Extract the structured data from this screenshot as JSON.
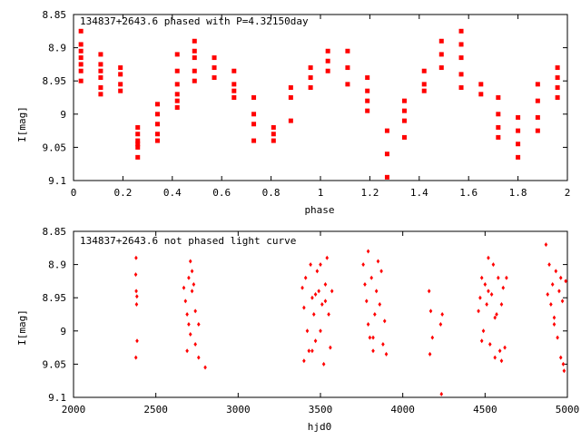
{
  "colors": {
    "marker": "#ff0000",
    "axis": "#000000",
    "background": "#ffffff"
  },
  "chart_data": [
    {
      "type": "scatter",
      "title": "134837+2643.6 phased with P=4.32150day",
      "xlabel": "phase",
      "ylabel": "I[mag]",
      "xlim": [
        0,
        2
      ],
      "ylim": [
        9.1,
        8.85
      ],
      "y_inverted": true,
      "grid": false,
      "x_ticks": [
        "0",
        "0.2",
        "0.4",
        "0.6",
        "0.8",
        "1",
        "1.2",
        "1.4",
        "1.6",
        "1.8",
        "2"
      ],
      "x_tick_values": [
        0,
        0.2,
        0.4,
        0.6,
        0.8,
        1,
        1.2,
        1.4,
        1.6,
        1.8,
        2
      ],
      "y_ticks": [
        "8.85",
        "8.9",
        "8.95",
        "9",
        "9.05",
        "9.1"
      ],
      "y_tick_values": [
        8.85,
        8.9,
        8.95,
        9.0,
        9.05,
        9.1
      ],
      "marker": "filled-square",
      "series": [
        {
          "points": [
            [
              0.03,
              8.875
            ],
            [
              0.03,
              8.895
            ],
            [
              0.03,
              8.905
            ],
            [
              0.03,
              8.915
            ],
            [
              0.03,
              8.925
            ],
            [
              0.03,
              8.935
            ],
            [
              0.03,
              8.95
            ],
            [
              0.11,
              8.91
            ],
            [
              0.11,
              8.925
            ],
            [
              0.11,
              8.935
            ],
            [
              0.11,
              8.945
            ],
            [
              0.11,
              8.96
            ],
            [
              0.11,
              8.97
            ],
            [
              0.19,
              8.93
            ],
            [
              0.19,
              8.94
            ],
            [
              0.19,
              8.955
            ],
            [
              0.19,
              8.965
            ],
            [
              0.26,
              9.02
            ],
            [
              0.26,
              9.03
            ],
            [
              0.26,
              9.04
            ],
            [
              0.26,
              9.045
            ],
            [
              0.26,
              9.05
            ],
            [
              0.26,
              9.065
            ],
            [
              0.34,
              8.985
            ],
            [
              0.34,
              9.0
            ],
            [
              0.34,
              9.015
            ],
            [
              0.34,
              9.03
            ],
            [
              0.34,
              9.04
            ],
            [
              0.42,
              8.91
            ],
            [
              0.42,
              8.935
            ],
            [
              0.42,
              8.955
            ],
            [
              0.42,
              8.97
            ],
            [
              0.42,
              8.98
            ],
            [
              0.42,
              8.99
            ],
            [
              0.49,
              8.89
            ],
            [
              0.49,
              8.905
            ],
            [
              0.49,
              8.915
            ],
            [
              0.49,
              8.935
            ],
            [
              0.49,
              8.95
            ],
            [
              0.57,
              8.915
            ],
            [
              0.57,
              8.93
            ],
            [
              0.57,
              8.945
            ],
            [
              0.65,
              8.935
            ],
            [
              0.65,
              8.955
            ],
            [
              0.65,
              8.965
            ],
            [
              0.65,
              8.975
            ],
            [
              0.73,
              8.975
            ],
            [
              0.73,
              9.0
            ],
            [
              0.73,
              9.015
            ],
            [
              0.73,
              9.04
            ],
            [
              0.81,
              9.02
            ],
            [
              0.81,
              9.03
            ],
            [
              0.81,
              9.04
            ],
            [
              0.88,
              8.96
            ],
            [
              0.88,
              8.975
            ],
            [
              0.88,
              9.01
            ],
            [
              0.96,
              8.93
            ],
            [
              0.96,
              8.945
            ],
            [
              0.96,
              8.96
            ],
            [
              1.03,
              8.905
            ],
            [
              1.03,
              8.92
            ],
            [
              1.03,
              8.935
            ],
            [
              1.11,
              8.905
            ],
            [
              1.11,
              8.93
            ],
            [
              1.11,
              8.955
            ],
            [
              1.19,
              8.945
            ],
            [
              1.19,
              8.965
            ],
            [
              1.19,
              8.98
            ],
            [
              1.19,
              8.995
            ],
            [
              1.27,
              9.025
            ],
            [
              1.27,
              9.06
            ],
            [
              1.27,
              9.095
            ],
            [
              1.34,
              8.98
            ],
            [
              1.34,
              8.995
            ],
            [
              1.34,
              9.01
            ],
            [
              1.34,
              9.035
            ],
            [
              1.42,
              8.935
            ],
            [
              1.42,
              8.955
            ],
            [
              1.42,
              8.965
            ],
            [
              1.49,
              8.89
            ],
            [
              1.49,
              8.91
            ],
            [
              1.49,
              8.93
            ],
            [
              1.57,
              8.875
            ],
            [
              1.57,
              8.895
            ],
            [
              1.57,
              8.915
            ],
            [
              1.57,
              8.94
            ],
            [
              1.57,
              8.96
            ],
            [
              1.65,
              8.955
            ],
            [
              1.65,
              8.97
            ],
            [
              1.72,
              8.975
            ],
            [
              1.72,
              9.0
            ],
            [
              1.72,
              9.02
            ],
            [
              1.72,
              9.035
            ],
            [
              1.8,
              9.005
            ],
            [
              1.8,
              9.025
            ],
            [
              1.8,
              9.045
            ],
            [
              1.8,
              9.065
            ],
            [
              1.88,
              8.955
            ],
            [
              1.88,
              8.98
            ],
            [
              1.88,
              9.005
            ],
            [
              1.88,
              9.025
            ],
            [
              1.96,
              8.93
            ],
            [
              1.96,
              8.945
            ],
            [
              1.96,
              8.96
            ],
            [
              1.96,
              8.975
            ]
          ]
        }
      ]
    },
    {
      "type": "scatter",
      "title": "134837+2643.6 not phased light curve",
      "xlabel": "hjd0",
      "ylabel": "I[mag]",
      "xlim": [
        2000,
        5000
      ],
      "ylim": [
        9.1,
        8.85
      ],
      "y_inverted": true,
      "grid": false,
      "x_ticks": [
        "2000",
        "2500",
        "3000",
        "3500",
        "4000",
        "4500",
        "5000"
      ],
      "x_tick_values": [
        2000,
        2500,
        3000,
        3500,
        4000,
        4500,
        5000
      ],
      "y_ticks": [
        "8.85",
        "8.9",
        "8.95",
        "9",
        "9.05",
        "9.1"
      ],
      "y_tick_values": [
        8.85,
        8.9,
        8.95,
        9.0,
        9.05,
        9.1
      ],
      "marker": "small-diamond",
      "series": [
        {
          "points": [
            [
              2380,
              8.89
            ],
            [
              2378,
              8.915
            ],
            [
              2381,
              8.94
            ],
            [
              2385,
              8.948
            ],
            [
              2383,
              8.96
            ],
            [
              2386,
              9.015
            ],
            [
              2379,
              9.04
            ],
            [
              2670,
              8.935
            ],
            [
              2680,
              8.955
            ],
            [
              2690,
              8.975
            ],
            [
              2700,
              8.92
            ],
            [
              2710,
              8.895
            ],
            [
              2720,
              8.91
            ],
            [
              2730,
              8.93
            ],
            [
              2700,
              8.99
            ],
            [
              2710,
              9.005
            ],
            [
              2740,
              8.97
            ],
            [
              2760,
              8.99
            ],
            [
              2740,
              9.02
            ],
            [
              2760,
              9.04
            ],
            [
              2800,
              9.055
            ],
            [
              2690,
              9.03
            ],
            [
              2720,
              8.94
            ],
            [
              3390,
              8.935
            ],
            [
              3400,
              8.965
            ],
            [
              3410,
              8.92
            ],
            [
              3420,
              9.0
            ],
            [
              3430,
              9.03
            ],
            [
              3440,
              8.9
            ],
            [
              3450,
              8.95
            ],
            [
              3460,
              8.975
            ],
            [
              3470,
              9.015
            ],
            [
              3480,
              8.91
            ],
            [
              3490,
              8.94
            ],
            [
              3500,
              8.9
            ],
            [
              3510,
              8.96
            ],
            [
              3520,
              9.05
            ],
            [
              3530,
              8.93
            ],
            [
              3540,
              8.89
            ],
            [
              3550,
              8.975
            ],
            [
              3560,
              9.025
            ],
            [
              3570,
              8.94
            ],
            [
              3400,
              9.045
            ],
            [
              3450,
              9.03
            ],
            [
              3500,
              9.0
            ],
            [
              3530,
              8.955
            ],
            [
              3470,
              8.945
            ],
            [
              3760,
              8.9
            ],
            [
              3770,
              8.93
            ],
            [
              3780,
              8.955
            ],
            [
              3790,
              8.88
            ],
            [
              3800,
              9.01
            ],
            [
              3810,
              8.92
            ],
            [
              3820,
              9.03
            ],
            [
              3830,
              8.975
            ],
            [
              3840,
              8.94
            ],
            [
              3850,
              8.895
            ],
            [
              3860,
              8.96
            ],
            [
              3870,
              8.91
            ],
            [
              3880,
              9.02
            ],
            [
              3890,
              8.985
            ],
            [
              3900,
              9.035
            ],
            [
              3790,
              8.99
            ],
            [
              3820,
              9.01
            ],
            [
              4160,
              8.94
            ],
            [
              4170,
              8.97
            ],
            [
              4180,
              9.01
            ],
            [
              4165,
              9.035
            ],
            [
              4230,
              8.99
            ],
            [
              4240,
              8.975
            ],
            [
              4235,
              9.095
            ],
            [
              4460,
              8.97
            ],
            [
              4470,
              8.95
            ],
            [
              4480,
              8.92
            ],
            [
              4490,
              9.0
            ],
            [
              4500,
              8.93
            ],
            [
              4510,
              8.96
            ],
            [
              4520,
              8.89
            ],
            [
              4530,
              9.02
            ],
            [
              4540,
              8.945
            ],
            [
              4550,
              8.9
            ],
            [
              4560,
              9.04
            ],
            [
              4570,
              8.975
            ],
            [
              4580,
              8.92
            ],
            [
              4590,
              9.03
            ],
            [
              4600,
              8.96
            ],
            [
              4610,
              8.935
            ],
            [
              4620,
              9.025
            ],
            [
              4630,
              8.92
            ],
            [
              4480,
              9.015
            ],
            [
              4520,
              8.94
            ],
            [
              4560,
              8.98
            ],
            [
              4600,
              9.045
            ],
            [
              4870,
              8.87
            ],
            [
              4880,
              8.945
            ],
            [
              4890,
              8.9
            ],
            [
              4900,
              8.96
            ],
            [
              4910,
              8.93
            ],
            [
              4920,
              8.99
            ],
            [
              4930,
              8.91
            ],
            [
              4940,
              9.01
            ],
            [
              4950,
              8.94
            ],
            [
              4960,
              9.04
            ],
            [
              4970,
              8.955
            ],
            [
              4980,
              9.06
            ],
            [
              4990,
              8.925
            ],
            [
              4920,
              8.98
            ],
            [
              4960,
              8.92
            ],
            [
              4975,
              9.05
            ]
          ]
        }
      ]
    }
  ]
}
